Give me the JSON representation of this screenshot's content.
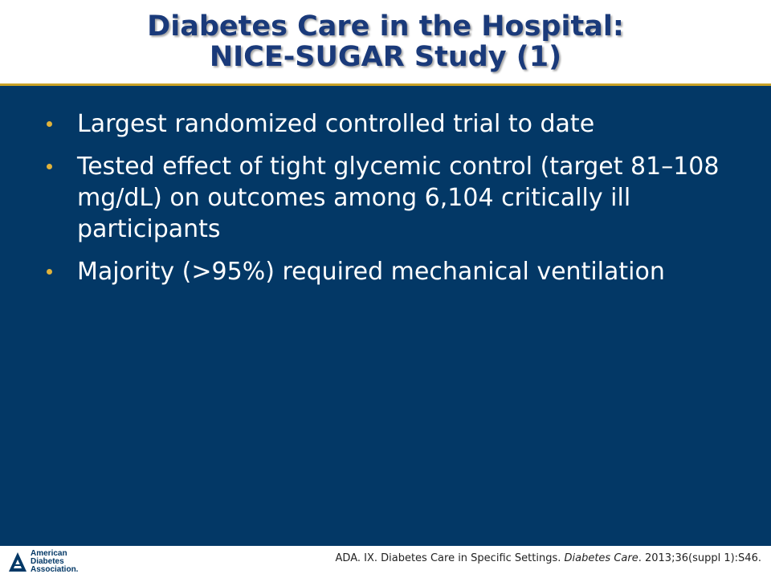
{
  "slide": {
    "title_line1": "Diabetes Care in the Hospital:",
    "title_line2": "NICE-SUGAR Study (1)",
    "bullets": [
      "Largest randomized controlled trial to date",
      "Tested effect of tight glycemic control (target 81–108 mg/dL) on outcomes among 6,104 critically ill participants",
      "Majority (>95%) required mechanical ventilation"
    ]
  },
  "footer": {
    "logo_line1": "American",
    "logo_line2": "Diabetes",
    "logo_line3": "Association.",
    "citation_pre": "ADA. IX. Diabetes Care in Specific Settings. ",
    "citation_journal": "Diabetes Care",
    "citation_post": ". 2013;36(suppl 1):S46."
  },
  "colors": {
    "title": "#1a3a7a",
    "background": "#033866",
    "bullet": "#e0b23a",
    "rule": "#c9a227"
  },
  "icons": {
    "logo": "ada-triangle-logo",
    "bullet": "bullet-dot"
  }
}
